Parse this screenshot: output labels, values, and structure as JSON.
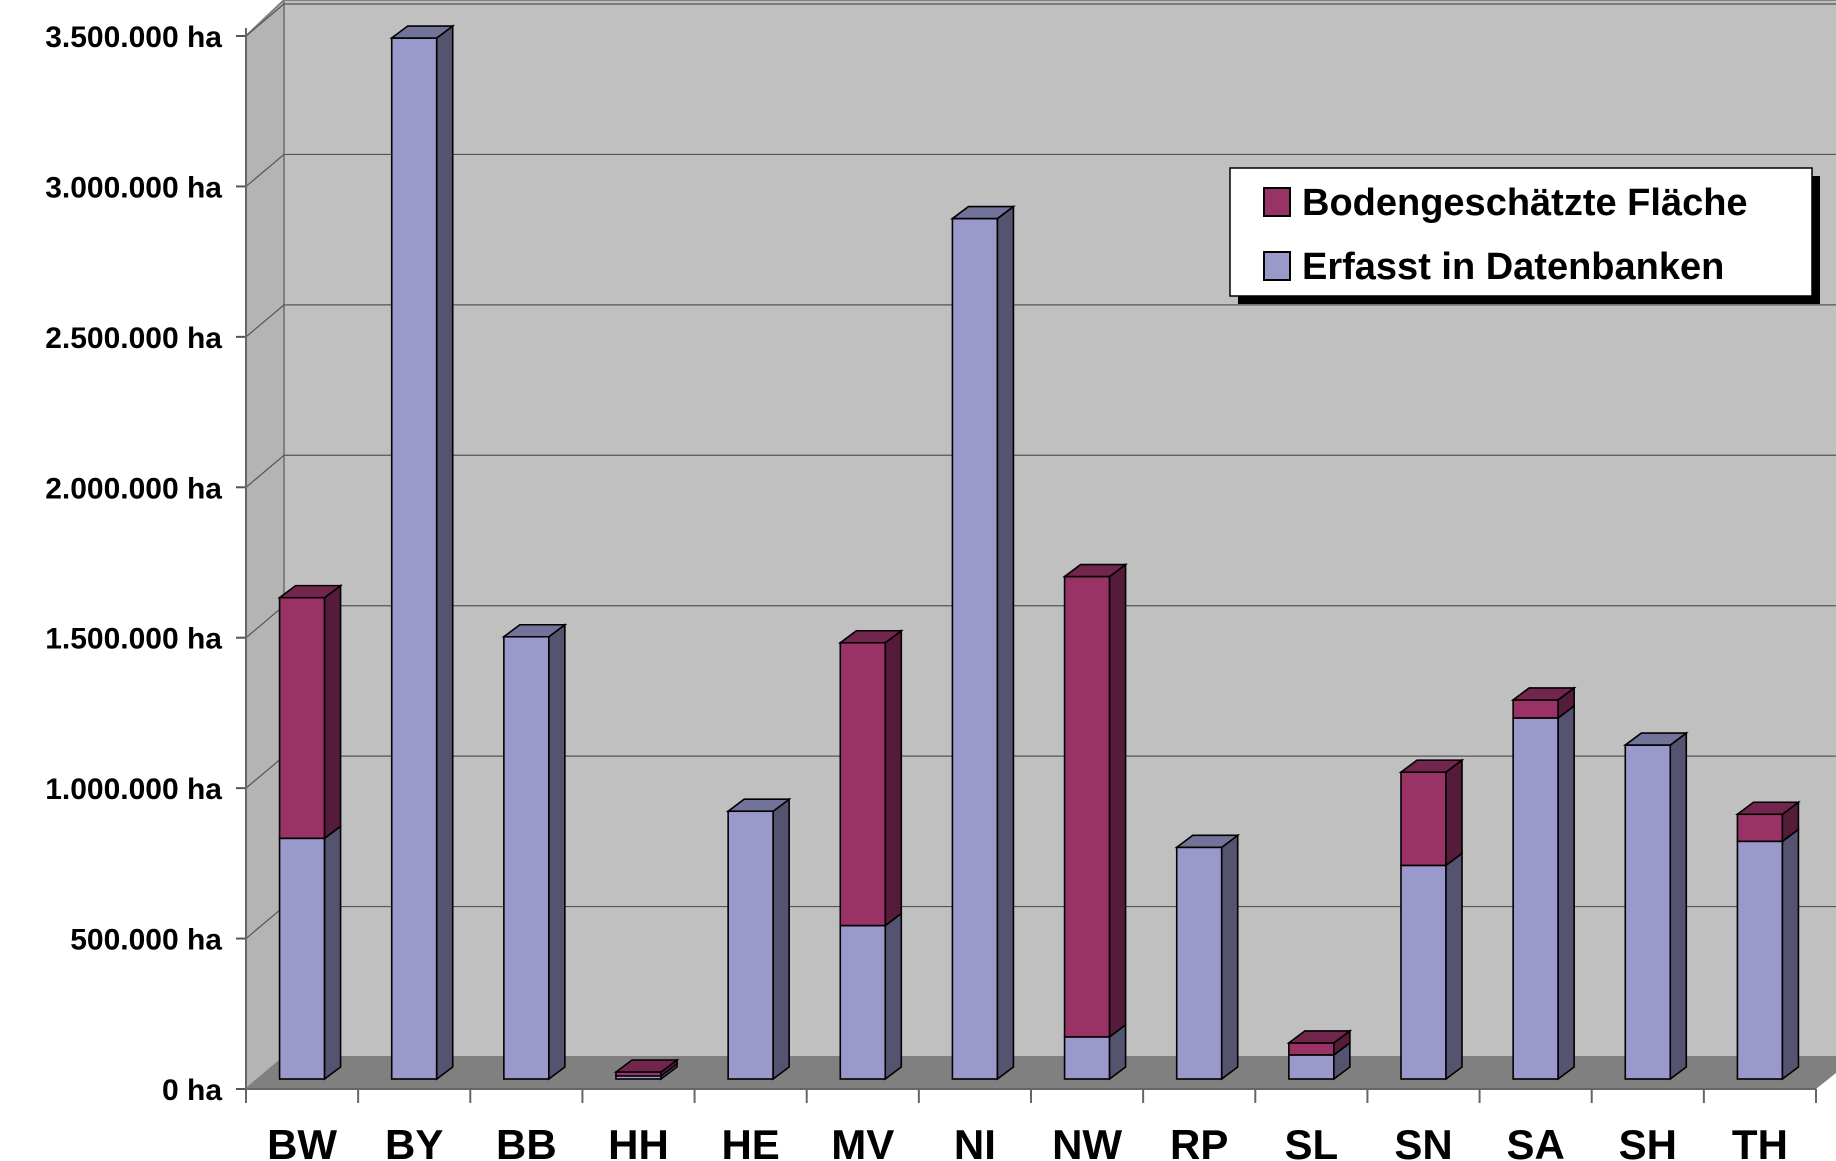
{
  "chart_data": {
    "type": "bar",
    "stacked": true,
    "three_d": true,
    "unit": "ha",
    "categories": [
      "BW",
      "BY",
      "BB",
      "HH",
      "HE",
      "MV",
      "NI",
      "NW",
      "RP",
      "SL",
      "SN",
      "SA",
      "SH",
      "TH"
    ],
    "series": [
      {
        "name": "Erfasst in Datenbanken",
        "color": "#9999cc",
        "values": [
          800000,
          3460000,
          1470000,
          10000,
          890000,
          510000,
          2860000,
          140000,
          770000,
          80000,
          710000,
          1200000,
          1110000,
          790000
        ]
      },
      {
        "name": "Bodengeschätzte Fläche",
        "color": "#993366",
        "values": [
          800000,
          0,
          0,
          10000,
          0,
          940000,
          0,
          1530000,
          0,
          40000,
          310000,
          60000,
          0,
          90000
        ]
      }
    ],
    "y_ticks": [
      "0 ha",
      "500.000 ha",
      "1.000.000 ha",
      "1.500.000 ha",
      "2.000.000 ha",
      "2.500.000 ha",
      "3.000.000 ha",
      "3.500.000 ha"
    ],
    "ylim": [
      0,
      3500000
    ],
    "y_tick_step": 500000,
    "grid": true,
    "background_color": "#c0c0c0",
    "floor_color": "#808080",
    "legend_position": "top-right",
    "legend_order": [
      "Bodengeschätzte Fläche",
      "Erfasst in Datenbanken"
    ],
    "title": "",
    "xlabel": "",
    "ylabel": ""
  }
}
